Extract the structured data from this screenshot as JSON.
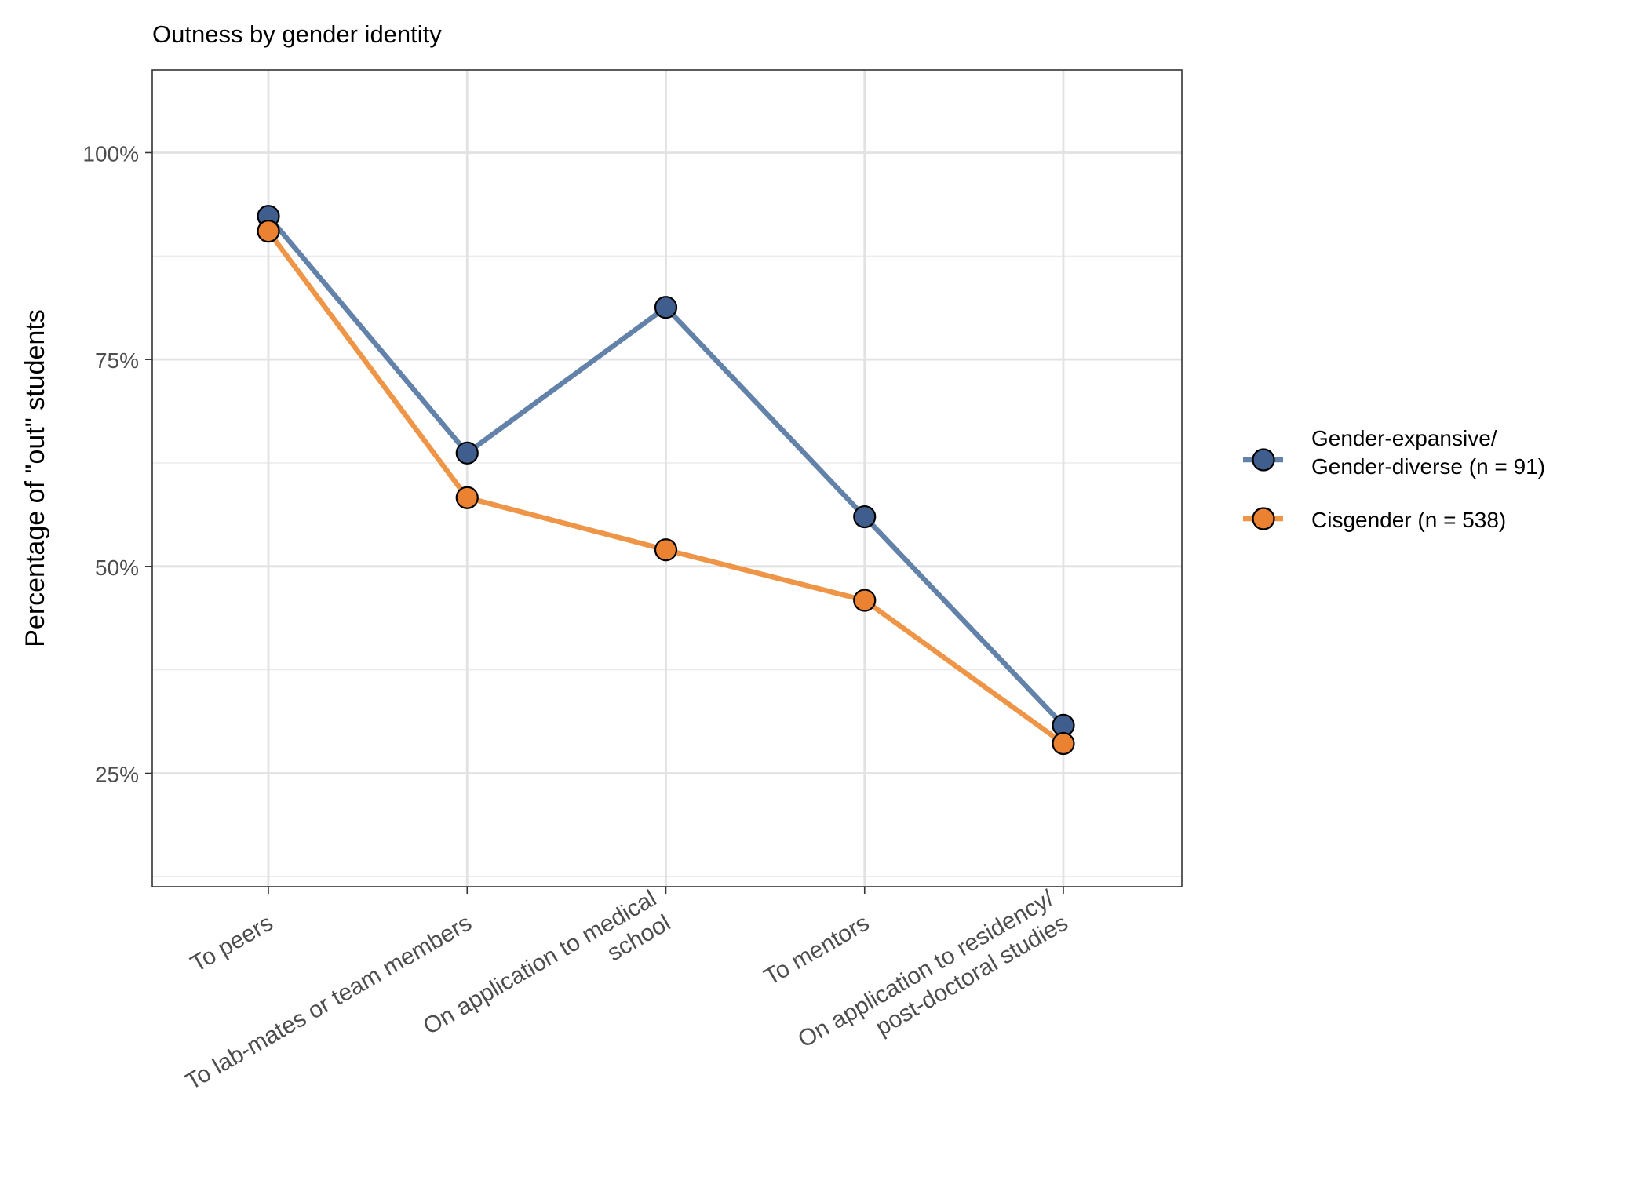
{
  "chart_data": {
    "type": "line",
    "title": "Outness by gender identity",
    "xlabel": "",
    "ylabel": "Percentage of \"out\" students",
    "categories": [
      [
        "To peers"
      ],
      [
        "To lab-mates or team members"
      ],
      [
        "On application to medical",
        "school"
      ],
      [
        "To mentors"
      ],
      [
        "On application to residency/",
        "post-doctoral studies"
      ]
    ],
    "ylim": [
      0.113,
      1.1
    ],
    "yticks": [
      0.25,
      0.5,
      0.75,
      1.0
    ],
    "ytick_labels": [
      "25%",
      "50%",
      "75%",
      "100%"
    ],
    "grid": true,
    "legend_position": "right",
    "series": [
      {
        "name": [
          "Gender-expansive/",
          "Gender-diverse (n = 91)"
        ],
        "line_color": "#6382AA",
        "point_color": "#3F5E8E",
        "values": [
          0.923,
          0.637,
          0.813,
          0.56,
          0.308
        ]
      },
      {
        "name": [
          "Cisgender (n = 538)"
        ],
        "line_color": "#EE9548",
        "point_color": "#EB8232",
        "values": [
          0.905,
          0.583,
          0.52,
          0.459,
          0.286
        ]
      }
    ]
  }
}
